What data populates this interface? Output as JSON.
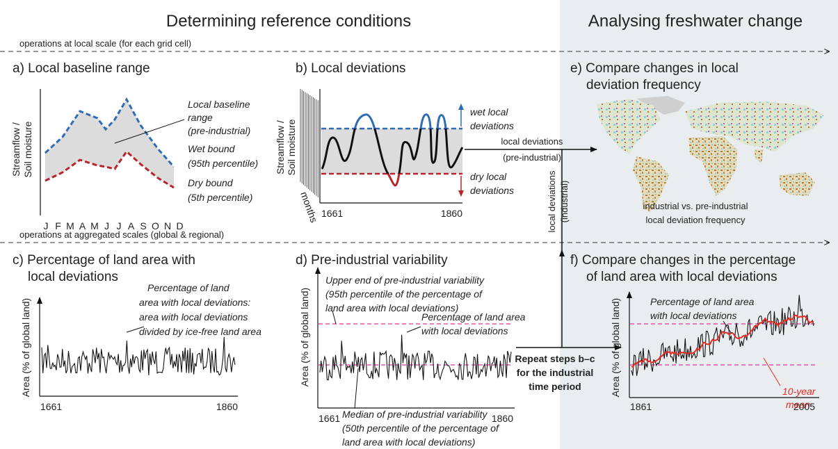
{
  "header": {
    "left_title": "Determining reference conditions",
    "right_title": "Analysing freshwater change"
  },
  "scale_labels": {
    "local": "operations at local scale (for each grid cell)",
    "aggregated": "operations at aggregated scales (global & regional)"
  },
  "panel_a": {
    "title": "a) Local baseline range",
    "y_label": [
      "Streamflow /",
      "Soil moisture"
    ],
    "months": [
      "J",
      "F",
      "M",
      "A",
      "M",
      "J",
      "J",
      "A",
      "S",
      "O",
      "N",
      "D"
    ],
    "baseline_label": [
      "Local baseline",
      "range",
      "(pre-industrial)"
    ],
    "wet_label": [
      "Wet bound",
      "(95th percentile)"
    ],
    "dry_label": [
      "Dry bound",
      "(5th percentile)"
    ]
  },
  "panel_b": {
    "title": "b) Local deviations",
    "y_label": [
      "Streamflow /",
      "Soil moisture"
    ],
    "months_label": "months",
    "x_start": "1661",
    "x_end": "1860",
    "wet_label": [
      "wet local",
      "deviations"
    ],
    "dry_label": [
      "dry local",
      "deviations"
    ]
  },
  "arrows": {
    "pre_industrial": [
      "local deviations",
      "(pre-industrial)"
    ],
    "industrial": [
      "local deviations",
      "(industrial)"
    ],
    "repeat": [
      "Repeat steps b–c",
      "for the industrial",
      "time period"
    ]
  },
  "panel_e": {
    "title": [
      "e) Compare changes in local",
      "deviation frequency"
    ],
    "caption": [
      "industrial vs. pre-industrial",
      "local deviation frequency"
    ]
  },
  "panel_c": {
    "title": [
      "c) Percentage of land area with",
      "local deviations"
    ],
    "annotation": [
      "Percentage of land",
      "area with local deviations:",
      "area with local deviations",
      "divided by ice-free land area"
    ],
    "y_label": "Area (% of global land)",
    "x_start": "1661",
    "x_end": "1860"
  },
  "panel_d": {
    "title": "d) Pre-industrial variability",
    "upper_label": [
      "Upper end of pre-industrial variability",
      "(95th percentile of the percentage of",
      "land area with local deviations)"
    ],
    "series_label": [
      "Percentage of land area",
      "with local deviations"
    ],
    "median_label": [
      "Median of pre-industrial variability",
      "(50th percentile of the percentage of",
      "land area with local deviations)"
    ],
    "y_label": "Area (% of global land)",
    "x_start": "1661",
    "x_end": "1860"
  },
  "panel_f": {
    "title": [
      "f) Compare changes in the percentage",
      "of land area with local deviations"
    ],
    "series_label": [
      "Percentage of land area",
      "with local deviations"
    ],
    "mean_label": [
      "10-year",
      "mean"
    ],
    "y_label": "Area (% of global land)",
    "x_start": "1861",
    "x_end": "2005"
  }
}
